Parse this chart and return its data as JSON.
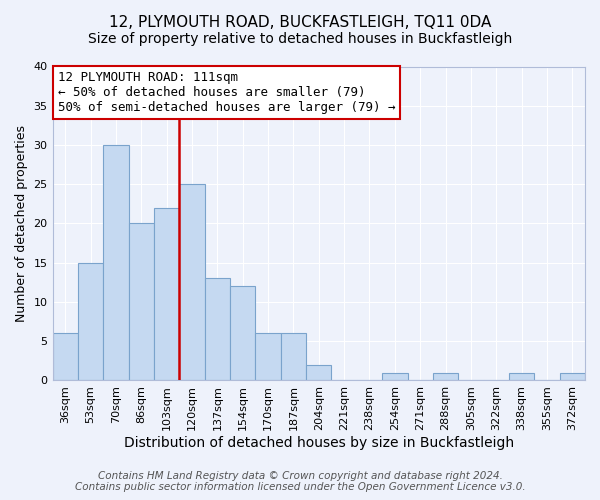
{
  "title": "12, PLYMOUTH ROAD, BUCKFASTLEIGH, TQ11 0DA",
  "subtitle": "Size of property relative to detached houses in Buckfastleigh",
  "xlabel": "Distribution of detached houses by size in Buckfastleigh",
  "ylabel": "Number of detached properties",
  "categories": [
    "36sqm",
    "53sqm",
    "70sqm",
    "86sqm",
    "103sqm",
    "120sqm",
    "137sqm",
    "154sqm",
    "170sqm",
    "187sqm",
    "204sqm",
    "221sqm",
    "238sqm",
    "254sqm",
    "271sqm",
    "288sqm",
    "305sqm",
    "322sqm",
    "338sqm",
    "355sqm",
    "372sqm"
  ],
  "values": [
    6,
    15,
    30,
    20,
    22,
    25,
    13,
    12,
    6,
    6,
    2,
    0,
    0,
    1,
    0,
    1,
    0,
    0,
    1,
    0,
    1
  ],
  "bar_color": "#c5d9f1",
  "bar_edge_color": "#7aa3cc",
  "vline_x_index": 4.5,
  "vline_color": "#cc0000",
  "ylim": [
    0,
    40
  ],
  "annotation_box_text": "12 PLYMOUTH ROAD: 111sqm\n← 50% of detached houses are smaller (79)\n50% of semi-detached houses are larger (79) →",
  "footer_line1": "Contains HM Land Registry data © Crown copyright and database right 2024.",
  "footer_line2": "Contains public sector information licensed under the Open Government Licence v3.0.",
  "background_color": "#eef2fb",
  "grid_color": "#ffffff",
  "title_fontsize": 11,
  "subtitle_fontsize": 10,
  "xlabel_fontsize": 10,
  "ylabel_fontsize": 9,
  "tick_fontsize": 8,
  "annotation_fontsize": 9,
  "footer_fontsize": 7.5
}
